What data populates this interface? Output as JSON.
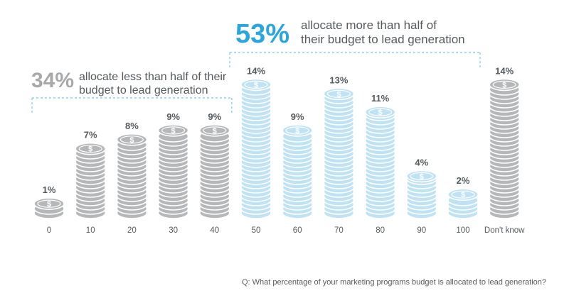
{
  "chart_data": {
    "type": "bar",
    "categories": [
      "0",
      "10",
      "20",
      "30",
      "40",
      "50",
      "60",
      "70",
      "80",
      "90",
      "100",
      "Don't know"
    ],
    "values": [
      1,
      7,
      8,
      9,
      9,
      14,
      9,
      13,
      11,
      4,
      2,
      14
    ],
    "value_labels": [
      "1%",
      "7%",
      "8%",
      "9%",
      "9%",
      "14%",
      "9%",
      "13%",
      "11%",
      "4%",
      "2%",
      "14%"
    ],
    "bar_style": "coin stacks",
    "coin_symbol": "$",
    "groups": [
      {
        "range": [
          "0",
          "40"
        ],
        "color": "#b5b7b9"
      },
      {
        "range": [
          "50",
          "100"
        ],
        "color": "#bfe3f4"
      },
      {
        "range": [
          "Don't know",
          "Don't know"
        ],
        "color": "#b5b7b9"
      }
    ],
    "callouts": [
      {
        "stat": "34%",
        "line1": "allocate less than half of their",
        "line2": "budget to lead generation",
        "color": "#a6a8aa",
        "spans": [
          "0",
          "40"
        ]
      },
      {
        "stat": "53%",
        "line1": "allocate more than half of",
        "line2": "their budget to lead generation",
        "color": "#2aa6df",
        "spans": [
          "50",
          "100"
        ]
      }
    ],
    "question": "Q: What percentage of your marketing programs budget is allocated to lead generation?",
    "colors": {
      "gray": "#b5b7b9",
      "gray_dark": "#8f9193",
      "blue": "#bfe3f4",
      "blue_dark": "#7fc8ea",
      "text": "#555a5e",
      "accent_blue": "#2aa6df",
      "bracket": "#8fd0ee"
    }
  }
}
